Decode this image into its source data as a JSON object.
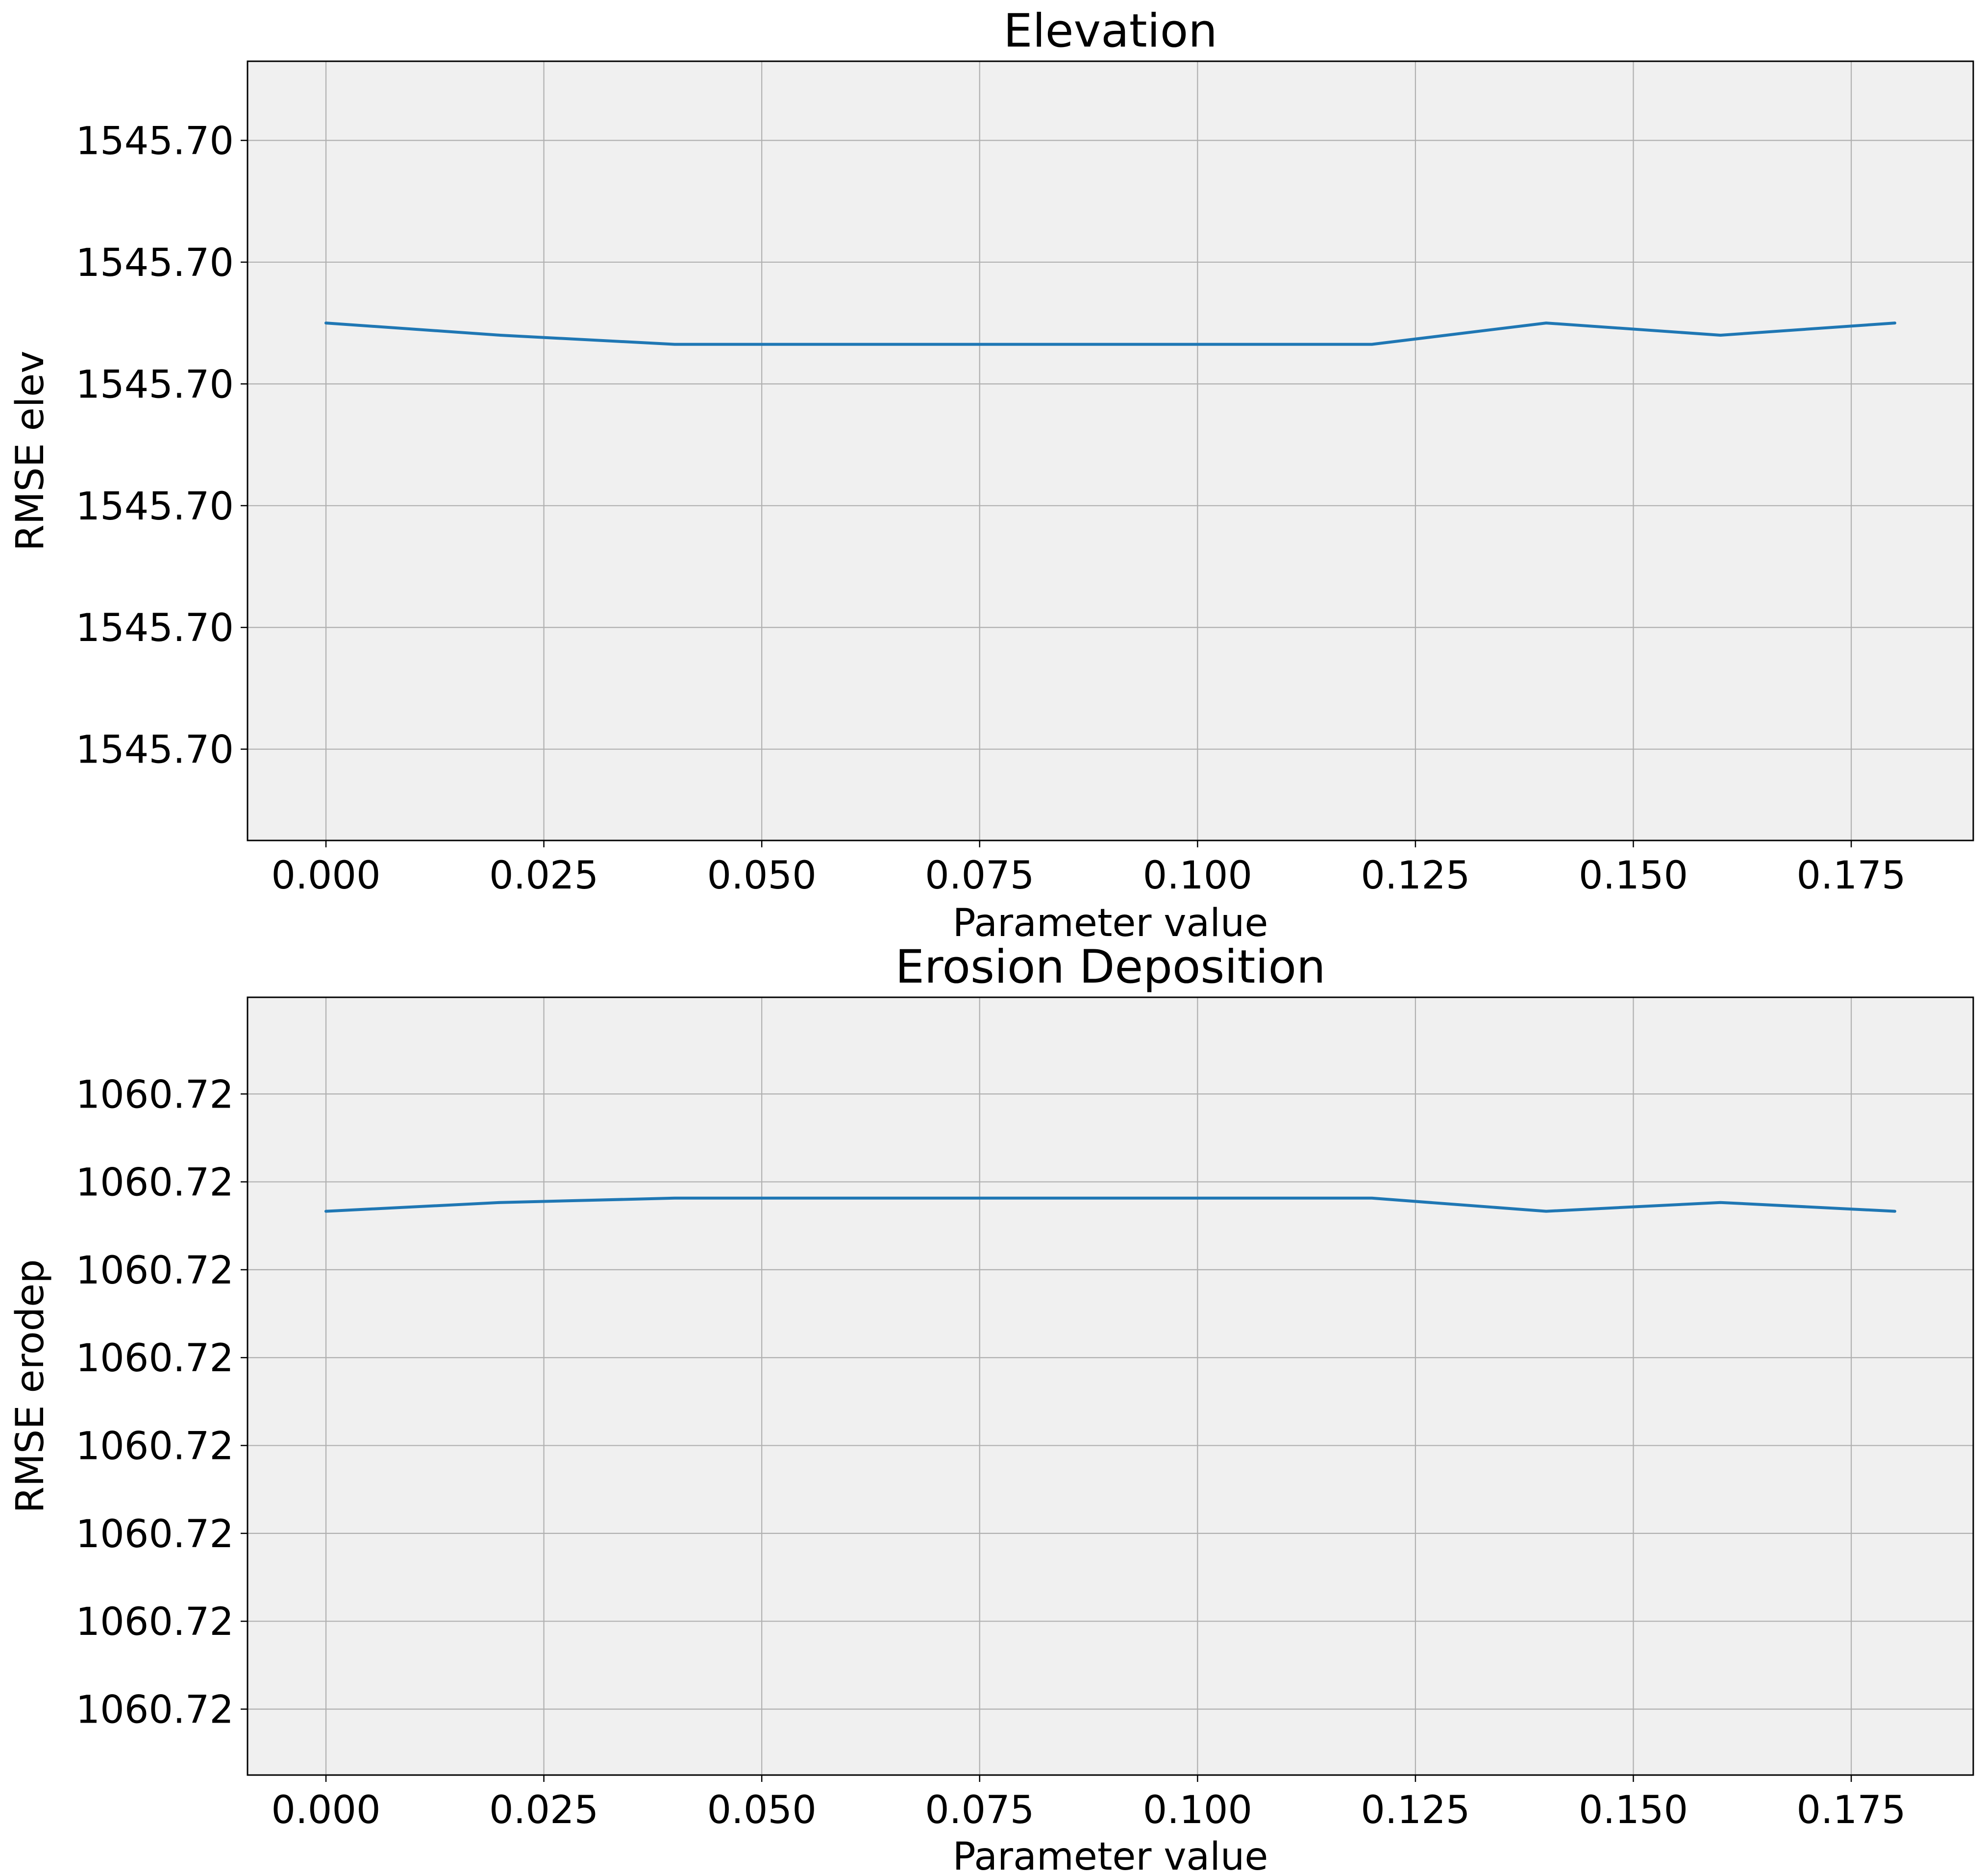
{
  "chart_data": [
    {
      "type": "line",
      "title": "Elevation",
      "xlabel": "Parameter value",
      "ylabel": "RMSE elev",
      "x": [
        0.0,
        0.02,
        0.04,
        0.06,
        0.08,
        0.1,
        0.12,
        0.14,
        0.16,
        0.18
      ],
      "series": [
        {
          "values": [
            3e-05,
            2.8e-05,
            2.65e-05,
            2.65e-05,
            2.65e-05,
            2.65e-05,
            2.65e-05,
            3e-05,
            2.8e-05,
            3e-05
          ]
        }
      ],
      "xlim": [
        -0.009,
        0.189
      ],
      "ylim": [
        -5.5e-05,
        7.3e-05
      ],
      "x_ticks": [
        0.0,
        0.025,
        0.05,
        0.075,
        0.1,
        0.125,
        0.15,
        0.175
      ],
      "x_tick_labels": [
        "0.000",
        "0.025",
        "0.050",
        "0.075",
        "0.100",
        "0.125",
        "0.150",
        "0.175"
      ],
      "y_ticks": [
        -4e-05,
        -2e-05,
        0.0,
        2e-05,
        4e-05,
        6e-05
      ],
      "y_tick_labels": [
        "1545.70",
        "1545.70",
        "1545.70",
        "1545.70",
        "1545.70",
        "1545.70"
      ],
      "grid": true,
      "colors": {
        "line": "#1f77b4",
        "background": "#f0f0f0",
        "grid": "#b0b0b0"
      }
    },
    {
      "type": "line",
      "title": "Erosion Deposition",
      "xlabel": "Parameter value",
      "ylabel": "RMSE erodep",
      "x": [
        0.0,
        0.02,
        0.04,
        0.06,
        0.08,
        0.1,
        0.12,
        0.14,
        0.16,
        0.18
      ],
      "series": [
        {
          "values": [
            3.33e-05,
            3.53e-05,
            3.63e-05,
            3.63e-05,
            3.63e-05,
            3.63e-05,
            3.63e-05,
            3.33e-05,
            3.53e-05,
            3.33e-05
          ]
        }
      ],
      "xlim": [
        -0.009,
        0.189
      ],
      "ylim": [
        -9.5e-05,
        8.2e-05
      ],
      "x_ticks": [
        0.0,
        0.025,
        0.05,
        0.075,
        0.1,
        0.125,
        0.15,
        0.175
      ],
      "x_tick_labels": [
        "0.000",
        "0.025",
        "0.050",
        "0.075",
        "0.100",
        "0.125",
        "0.150",
        "0.175"
      ],
      "y_ticks": [
        -8e-05,
        -6e-05,
        -4e-05,
        -2e-05,
        0.0,
        2e-05,
        4e-05,
        6e-05
      ],
      "y_tick_labels": [
        "1060.72",
        "1060.72",
        "1060.72",
        "1060.72",
        "1060.72",
        "1060.72",
        "1060.72",
        "1060.72"
      ],
      "grid": true,
      "colors": {
        "line": "#1f77b4",
        "background": "#f0f0f0",
        "grid": "#b0b0b0"
      }
    }
  ]
}
